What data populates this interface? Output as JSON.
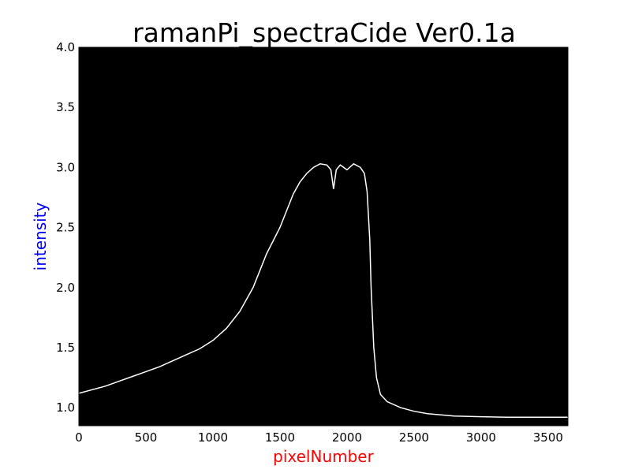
{
  "chart_data": {
    "type": "line",
    "title": "ramanPi_spectraCide Ver0.1a",
    "xlabel": "pixelNumber",
    "ylabel": "intensity",
    "xlim": [
      0,
      3648
    ],
    "ylim": [
      0.85,
      4.0
    ],
    "x_ticks": [
      0,
      500,
      1000,
      1500,
      2000,
      2500,
      3000,
      3500
    ],
    "y_ticks": [
      1.0,
      1.5,
      2.0,
      2.5,
      3.0,
      3.5,
      4.0
    ],
    "y_tick_labels": [
      "1.0",
      "1.5",
      "2.0",
      "2.5",
      "3.0",
      "3.5",
      "4.0"
    ],
    "grid": false,
    "legend": "none",
    "series": [
      {
        "x": [
          0,
          100,
          200,
          300,
          400,
          500,
          600,
          700,
          800,
          900,
          1000,
          1100,
          1200,
          1300,
          1400,
          1500,
          1600,
          1650,
          1700,
          1750,
          1800,
          1850,
          1880,
          1900,
          1920,
          1950,
          2000,
          2050,
          2100,
          2130,
          2150,
          2170,
          2180,
          2200,
          2220,
          2250,
          2300,
          2400,
          2500,
          2600,
          2700,
          2800,
          3000,
          3200,
          3400,
          3648
        ],
        "values": [
          1.12,
          1.15,
          1.18,
          1.22,
          1.26,
          1.3,
          1.34,
          1.39,
          1.44,
          1.49,
          1.56,
          1.66,
          1.8,
          2.0,
          2.28,
          2.5,
          2.78,
          2.88,
          2.95,
          3.0,
          3.03,
          3.02,
          2.98,
          2.82,
          2.98,
          3.02,
          2.98,
          3.03,
          3.0,
          2.95,
          2.8,
          2.4,
          2.0,
          1.5,
          1.25,
          1.11,
          1.05,
          1.0,
          0.97,
          0.95,
          0.94,
          0.93,
          0.925,
          0.92,
          0.92,
          0.92
        ],
        "color": "#ffffff"
      }
    ],
    "colors": {
      "plot_background": "#000000",
      "line": "#ffffff",
      "xlabel": "#ff0000",
      "ylabel": "#0000ff"
    }
  }
}
